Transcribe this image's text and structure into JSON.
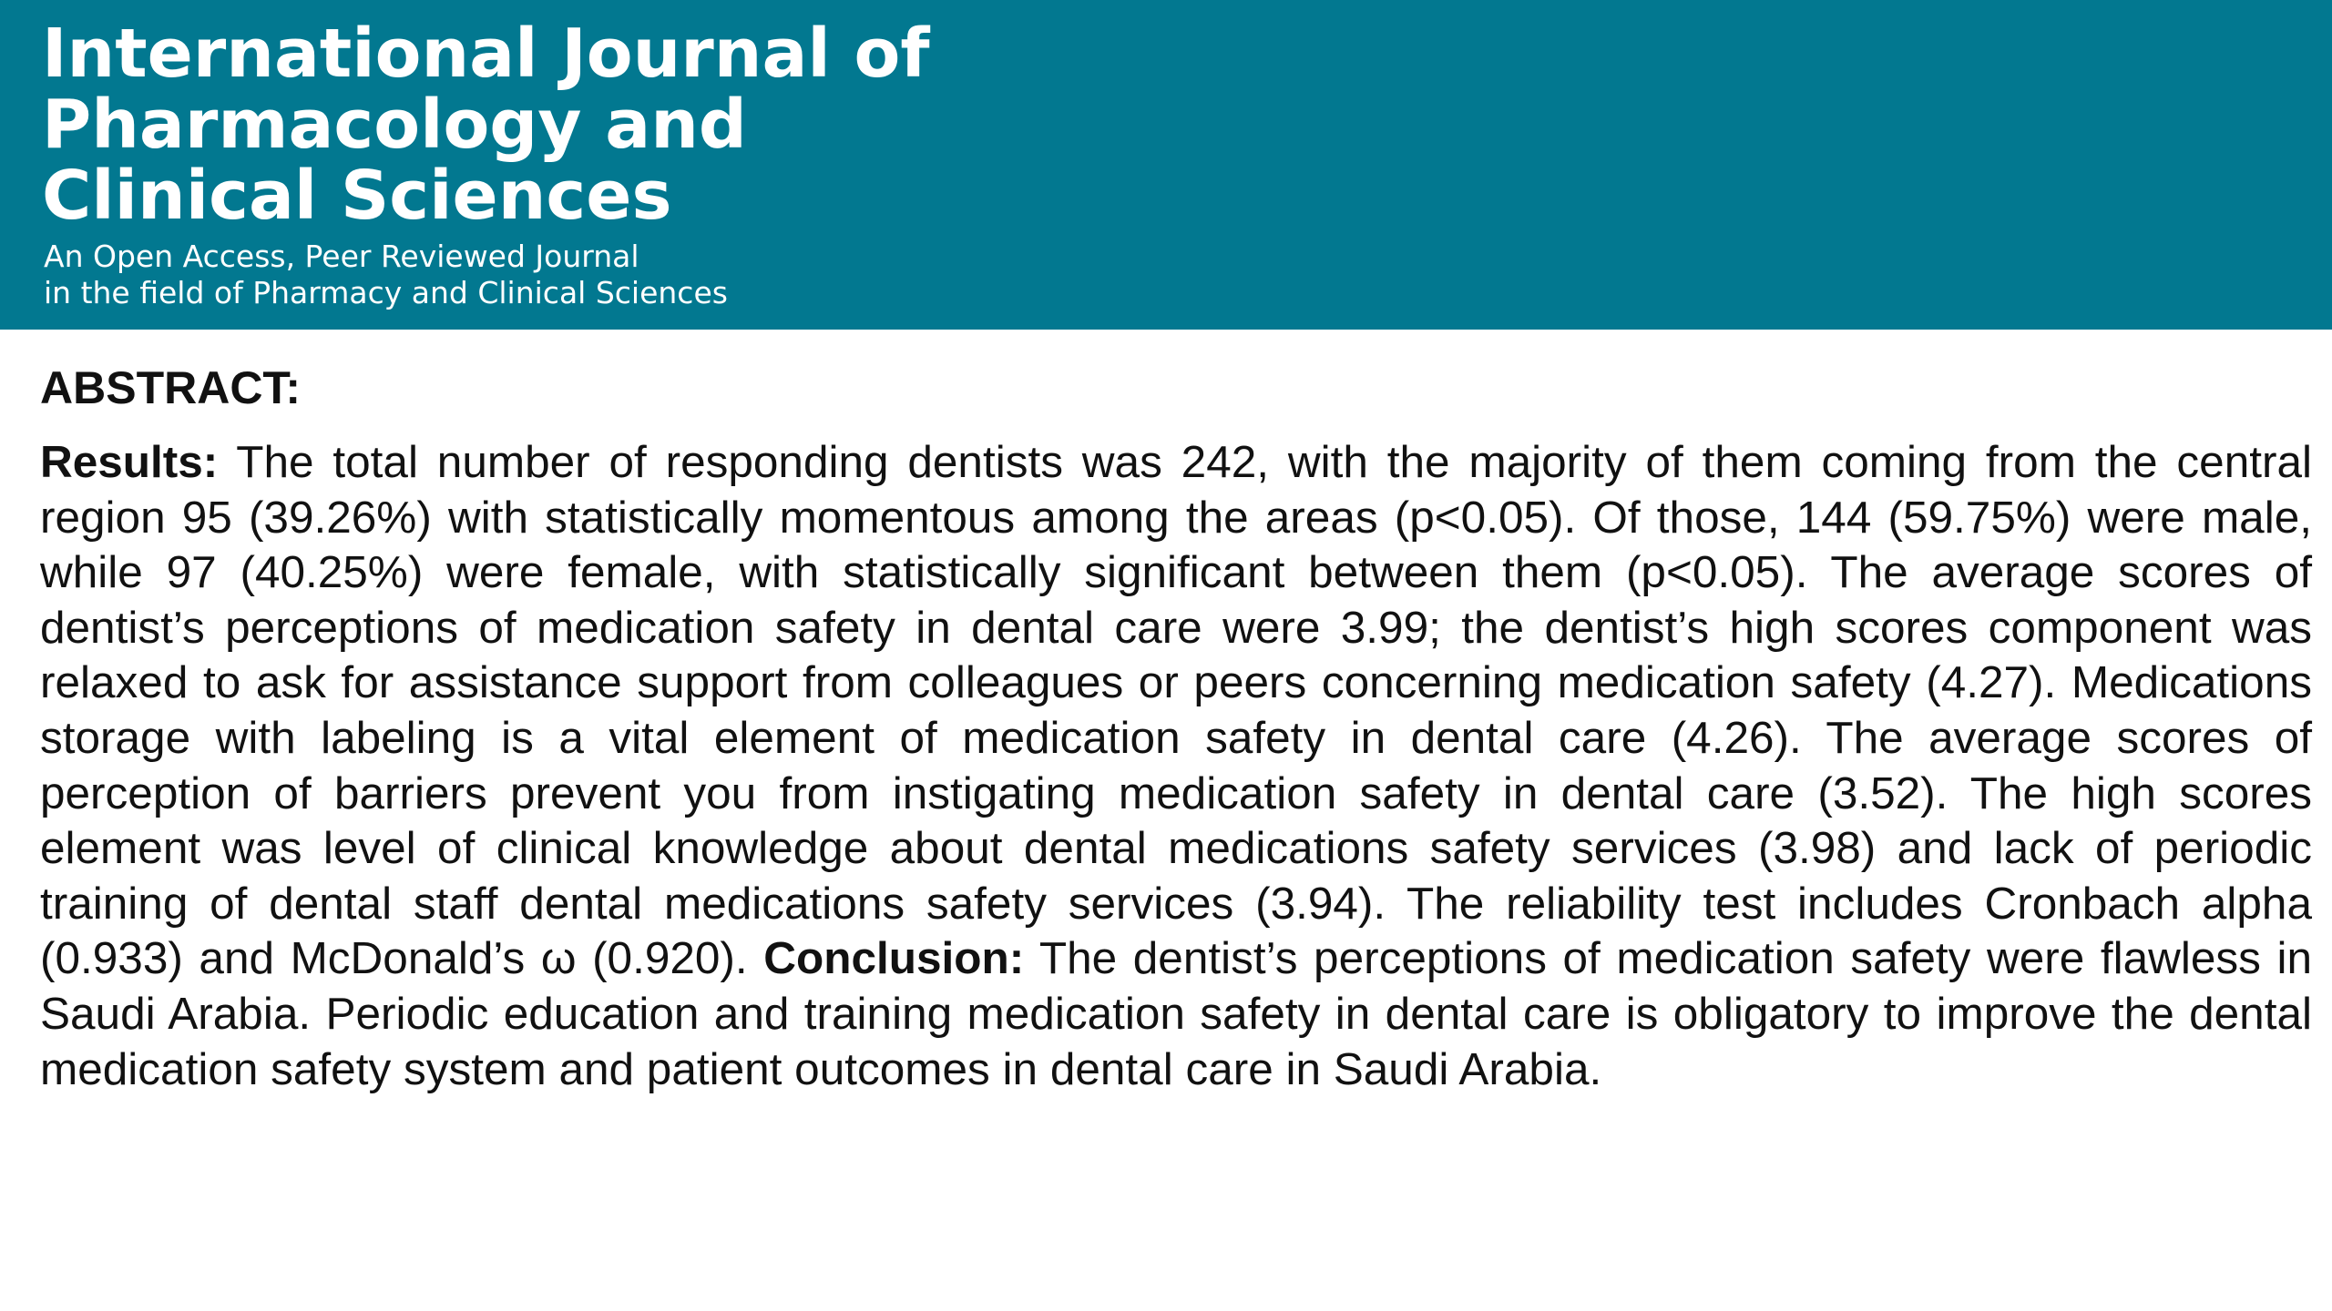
{
  "banner": {
    "color": "#027890",
    "title_lines": [
      "International Journal of",
      "Pharmacology and",
      "Clinical Sciences"
    ],
    "subtitle_lines": [
      "An Open Access, Peer Reviewed Journal",
      "in the field of Pharmacy and Clinical Sciences"
    ]
  },
  "abstract": {
    "heading": "ABSTRACT:",
    "results_label": "Results:",
    "results_text": " The total number of responding dentists was 242, with the majority of them coming from the central region 95 (39.26%) with statistically momentous among the areas (p<0.05). Of those, 144 (59.75%) were male, while 97 (40.25%) were female, with statistically significant between them (p<0.05). The average scores of dentist’s perceptions of medication safety in dental care were 3.99; the dentist’s high scores component was relaxed to ask for assistance support from colleagues or peers concerning medication safety (4.27). Medications storage with labeling is a vital element of medication safety in dental care (4.26). The average scores of perception of barriers prevent you from instigating medication safety in dental care (3.52). The high scores element was level of clinical knowledge about dental medications safety services (3.98) and lack of periodic training of dental staff dental medications safety services (3.94). The reliability test includes Cronbach alpha (0.933) and McDonald’s ω (0.920).  ",
    "conclusion_label": "Conclusion:",
    "conclusion_text": " The dentist’s perceptions of medication safety were flawless in Saudi Arabia. Periodic education and training medication safety in dental care is obligatory to improve the dental medication safety system and patient outcomes in dental care in Saudi Arabia."
  }
}
